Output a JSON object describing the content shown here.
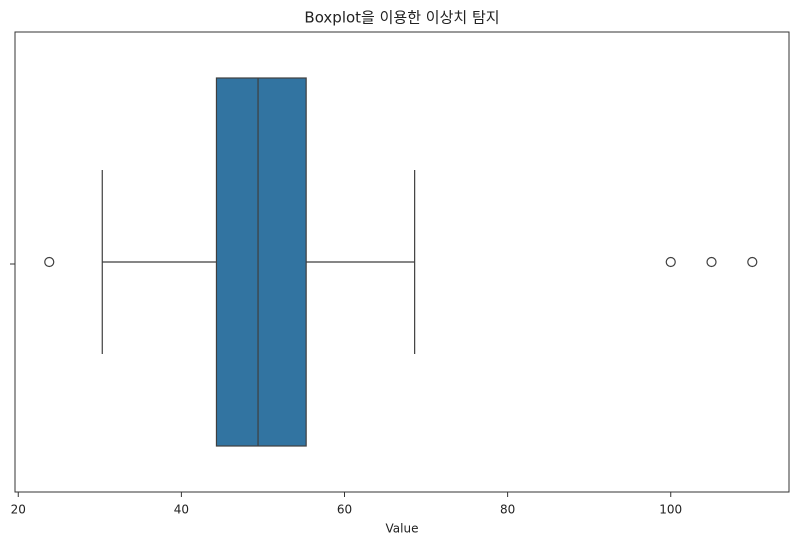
{
  "chart_data": {
    "type": "box",
    "title": "Boxplot을 이용한 이상치 탐지",
    "xlabel": "Value",
    "boxes": [
      {
        "whislo": 30.3,
        "q1": 44.3,
        "med": 49.4,
        "q3": 55.3,
        "whishi": 68.6,
        "fliers": [
          23.8,
          100,
          105,
          110
        ]
      }
    ],
    "color": "#3274a1",
    "xlim": [
      19.6,
      114.5
    ],
    "xticks": [
      20,
      40,
      60,
      80,
      100
    ]
  }
}
